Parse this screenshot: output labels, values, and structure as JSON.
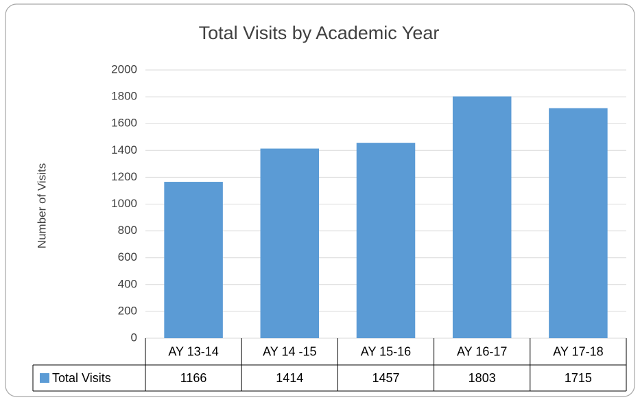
{
  "chart_data": {
    "type": "bar",
    "title": "Total Visits by Academic Year",
    "y_label": "Number of Visits",
    "categories": [
      "AY 13-14",
      "AY 14 -15",
      "AY 15-16",
      "AY 16-17",
      "AY 17-18"
    ],
    "series": [
      {
        "name": "Total Visits",
        "color": "#5b9bd5",
        "values": [
          1166,
          1414,
          1457,
          1803,
          1715
        ]
      }
    ],
    "ylim": [
      0,
      2000
    ],
    "yticks": [
      0,
      200,
      400,
      600,
      800,
      1000,
      1200,
      1400,
      1600,
      1800,
      2000
    ],
    "grid": true,
    "legend": "data-table"
  }
}
